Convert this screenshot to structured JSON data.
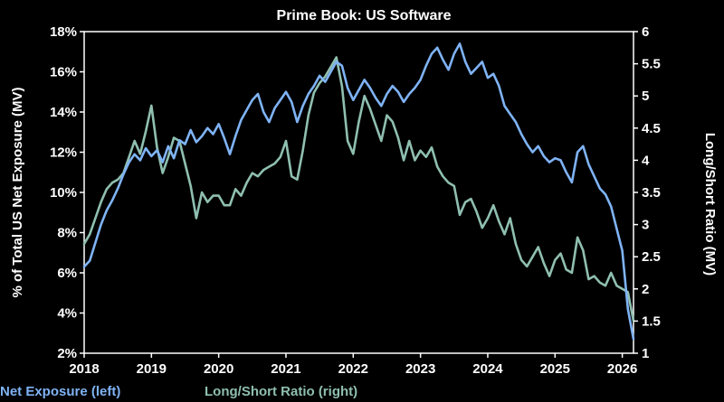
{
  "chart_data": {
    "type": "line",
    "title": "Prime Book: US Software",
    "ylabel_left": "% of Total US Net Exposure (MV)",
    "ylabel_right": "Long/Short Ratio (MV)",
    "x_ticks": [
      "2018",
      "2019",
      "2020",
      "2021",
      "2022",
      "2023",
      "2024",
      "2025",
      "2026"
    ],
    "xlim": [
      "2018-01",
      "2026-03"
    ],
    "y_left_ticks": [
      "18%",
      "16%",
      "14%",
      "12%",
      "10%",
      "8%",
      "6%",
      "4%",
      "2%"
    ],
    "ylim_left": [
      2,
      18
    ],
    "y_right_ticks": [
      "6",
      "5.5",
      "5",
      "4.5",
      "4",
      "3.5",
      "3",
      "2.5",
      "2",
      "1.5",
      "1"
    ],
    "ylim_right": [
      1,
      6
    ],
    "grid": false,
    "legend_position": "bottom",
    "colors": {
      "net_exposure": "#7FB3F5",
      "long_short": "#8FBFB0"
    },
    "series": [
      {
        "name": "Net Exposure (left)",
        "axis": "left",
        "points": [
          [
            "2018-01",
            6.3
          ],
          [
            "2018-02",
            6.6
          ],
          [
            "2018-03",
            7.5
          ],
          [
            "2018-04",
            8.4
          ],
          [
            "2018-05",
            9.1
          ],
          [
            "2018-06",
            9.6
          ],
          [
            "2018-07",
            10.2
          ],
          [
            "2018-08",
            10.9
          ],
          [
            "2018-09",
            11.5
          ],
          [
            "2018-10",
            11.9
          ],
          [
            "2018-11",
            11.6
          ],
          [
            "2018-12",
            12.2
          ],
          [
            "2019-01",
            11.8
          ],
          [
            "2019-02",
            12.1
          ],
          [
            "2019-03",
            11.5
          ],
          [
            "2019-04",
            12.3
          ],
          [
            "2019-05",
            11.7
          ],
          [
            "2019-06",
            12.6
          ],
          [
            "2019-07",
            12.4
          ],
          [
            "2019-08",
            13.1
          ],
          [
            "2019-09",
            12.5
          ],
          [
            "2019-10",
            12.8
          ],
          [
            "2019-11",
            13.2
          ],
          [
            "2019-12",
            12.9
          ],
          [
            "2020-01",
            13.4
          ],
          [
            "2020-02",
            12.7
          ],
          [
            "2020-03",
            11.9
          ],
          [
            "2020-04",
            12.8
          ],
          [
            "2020-05",
            13.6
          ],
          [
            "2020-06",
            14.1
          ],
          [
            "2020-07",
            14.6
          ],
          [
            "2020-08",
            14.9
          ],
          [
            "2020-09",
            14.0
          ],
          [
            "2020-10",
            13.5
          ],
          [
            "2020-11",
            14.2
          ],
          [
            "2020-12",
            14.6
          ],
          [
            "2021-01",
            15.0
          ],
          [
            "2021-02",
            14.5
          ],
          [
            "2021-03",
            13.5
          ],
          [
            "2021-04",
            14.3
          ],
          [
            "2021-05",
            14.9
          ],
          [
            "2021-06",
            15.3
          ],
          [
            "2021-07",
            15.8
          ],
          [
            "2021-08",
            15.5
          ],
          [
            "2021-09",
            16.0
          ],
          [
            "2021-10",
            16.5
          ],
          [
            "2021-11",
            16.3
          ],
          [
            "2021-12",
            15.2
          ],
          [
            "2022-01",
            14.6
          ],
          [
            "2022-02",
            15.1
          ],
          [
            "2022-03",
            15.6
          ],
          [
            "2022-04",
            15.2
          ],
          [
            "2022-05",
            14.7
          ],
          [
            "2022-06",
            14.3
          ],
          [
            "2022-07",
            14.9
          ],
          [
            "2022-08",
            15.3
          ],
          [
            "2022-09",
            15.0
          ],
          [
            "2022-10",
            14.5
          ],
          [
            "2022-11",
            14.9
          ],
          [
            "2022-12",
            15.2
          ],
          [
            "2023-01",
            15.6
          ],
          [
            "2023-02",
            16.3
          ],
          [
            "2023-03",
            16.9
          ],
          [
            "2023-04",
            17.2
          ],
          [
            "2023-05",
            16.6
          ],
          [
            "2023-06",
            16.1
          ],
          [
            "2023-07",
            16.9
          ],
          [
            "2023-08",
            17.4
          ],
          [
            "2023-09",
            16.5
          ],
          [
            "2023-10",
            15.9
          ],
          [
            "2023-11",
            16.2
          ],
          [
            "2023-12",
            16.5
          ],
          [
            "2024-01",
            15.7
          ],
          [
            "2024-02",
            15.9
          ],
          [
            "2024-03",
            15.3
          ],
          [
            "2024-04",
            14.3
          ],
          [
            "2024-05",
            13.9
          ],
          [
            "2024-06",
            13.5
          ],
          [
            "2024-07",
            12.9
          ],
          [
            "2024-08",
            12.4
          ],
          [
            "2024-09",
            12.0
          ],
          [
            "2024-10",
            12.3
          ],
          [
            "2024-11",
            11.8
          ],
          [
            "2024-12",
            11.5
          ],
          [
            "2025-01",
            11.7
          ],
          [
            "2025-02",
            11.6
          ],
          [
            "2025-03",
            11.0
          ],
          [
            "2025-04",
            10.5
          ],
          [
            "2025-05",
            12.0
          ],
          [
            "2025-06",
            12.3
          ],
          [
            "2025-07",
            11.4
          ],
          [
            "2025-08",
            10.8
          ],
          [
            "2025-09",
            10.2
          ],
          [
            "2025-10",
            9.9
          ],
          [
            "2025-11",
            9.3
          ],
          [
            "2025-12",
            8.2
          ],
          [
            "2026-01",
            7.1
          ],
          [
            "2026-02",
            4.2
          ],
          [
            "2026-03",
            2.7
          ]
        ]
      },
      {
        "name": "Long/Short Ratio (right)",
        "axis": "right",
        "points": [
          [
            "2018-01",
            2.7
          ],
          [
            "2018-02",
            2.85
          ],
          [
            "2018-03",
            3.1
          ],
          [
            "2018-04",
            3.35
          ],
          [
            "2018-05",
            3.55
          ],
          [
            "2018-06",
            3.65
          ],
          [
            "2018-07",
            3.7
          ],
          [
            "2018-08",
            3.8
          ],
          [
            "2018-09",
            4.05
          ],
          [
            "2018-10",
            4.3
          ],
          [
            "2018-11",
            4.1
          ],
          [
            "2018-12",
            4.45
          ],
          [
            "2019-01",
            4.85
          ],
          [
            "2019-02",
            4.2
          ],
          [
            "2019-03",
            3.8
          ],
          [
            "2019-04",
            4.05
          ],
          [
            "2019-05",
            4.35
          ],
          [
            "2019-06",
            4.3
          ],
          [
            "2019-07",
            3.95
          ],
          [
            "2019-08",
            3.6
          ],
          [
            "2019-09",
            3.1
          ],
          [
            "2019-10",
            3.5
          ],
          [
            "2019-11",
            3.35
          ],
          [
            "2019-12",
            3.45
          ],
          [
            "2020-01",
            3.45
          ],
          [
            "2020-02",
            3.3
          ],
          [
            "2020-03",
            3.3
          ],
          [
            "2020-04",
            3.55
          ],
          [
            "2020-05",
            3.45
          ],
          [
            "2020-06",
            3.65
          ],
          [
            "2020-07",
            3.8
          ],
          [
            "2020-08",
            3.75
          ],
          [
            "2020-09",
            3.85
          ],
          [
            "2020-10",
            3.9
          ],
          [
            "2020-11",
            3.95
          ],
          [
            "2020-12",
            4.05
          ],
          [
            "2021-01",
            4.3
          ],
          [
            "2021-02",
            3.75
          ],
          [
            "2021-03",
            3.7
          ],
          [
            "2021-04",
            4.15
          ],
          [
            "2021-05",
            4.7
          ],
          [
            "2021-06",
            5.05
          ],
          [
            "2021-07",
            5.2
          ],
          [
            "2021-08",
            5.3
          ],
          [
            "2021-09",
            5.45
          ],
          [
            "2021-10",
            5.6
          ],
          [
            "2021-11",
            5.15
          ],
          [
            "2021-12",
            4.3
          ],
          [
            "2022-01",
            4.1
          ],
          [
            "2022-02",
            4.6
          ],
          [
            "2022-03",
            5.0
          ],
          [
            "2022-04",
            4.8
          ],
          [
            "2022-05",
            4.55
          ],
          [
            "2022-06",
            4.3
          ],
          [
            "2022-07",
            4.7
          ],
          [
            "2022-08",
            4.6
          ],
          [
            "2022-09",
            4.35
          ],
          [
            "2022-10",
            4.0
          ],
          [
            "2022-11",
            4.3
          ],
          [
            "2022-12",
            4.0
          ],
          [
            "2023-01",
            4.15
          ],
          [
            "2023-02",
            4.05
          ],
          [
            "2023-03",
            4.2
          ],
          [
            "2023-04",
            3.9
          ],
          [
            "2023-05",
            3.75
          ],
          [
            "2023-06",
            3.65
          ],
          [
            "2023-07",
            3.6
          ],
          [
            "2023-08",
            3.15
          ],
          [
            "2023-09",
            3.35
          ],
          [
            "2023-10",
            3.4
          ],
          [
            "2023-11",
            3.2
          ],
          [
            "2023-12",
            2.95
          ],
          [
            "2024-01",
            3.1
          ],
          [
            "2024-02",
            3.3
          ],
          [
            "2024-03",
            3.05
          ],
          [
            "2024-04",
            2.85
          ],
          [
            "2024-05",
            3.1
          ],
          [
            "2024-06",
            2.7
          ],
          [
            "2024-07",
            2.45
          ],
          [
            "2024-08",
            2.35
          ],
          [
            "2024-09",
            2.5
          ],
          [
            "2024-10",
            2.65
          ],
          [
            "2024-11",
            2.4
          ],
          [
            "2024-12",
            2.2
          ],
          [
            "2025-01",
            2.45
          ],
          [
            "2025-02",
            2.55
          ],
          [
            "2025-03",
            2.3
          ],
          [
            "2025-04",
            2.25
          ],
          [
            "2025-05",
            2.8
          ],
          [
            "2025-06",
            2.6
          ],
          [
            "2025-07",
            2.15
          ],
          [
            "2025-08",
            2.2
          ],
          [
            "2025-09",
            2.1
          ],
          [
            "2025-10",
            2.05
          ],
          [
            "2025-11",
            2.25
          ],
          [
            "2025-12",
            2.05
          ],
          [
            "2026-01",
            2.0
          ],
          [
            "2026-02",
            1.95
          ],
          [
            "2026-03",
            1.5
          ]
        ]
      }
    ]
  }
}
